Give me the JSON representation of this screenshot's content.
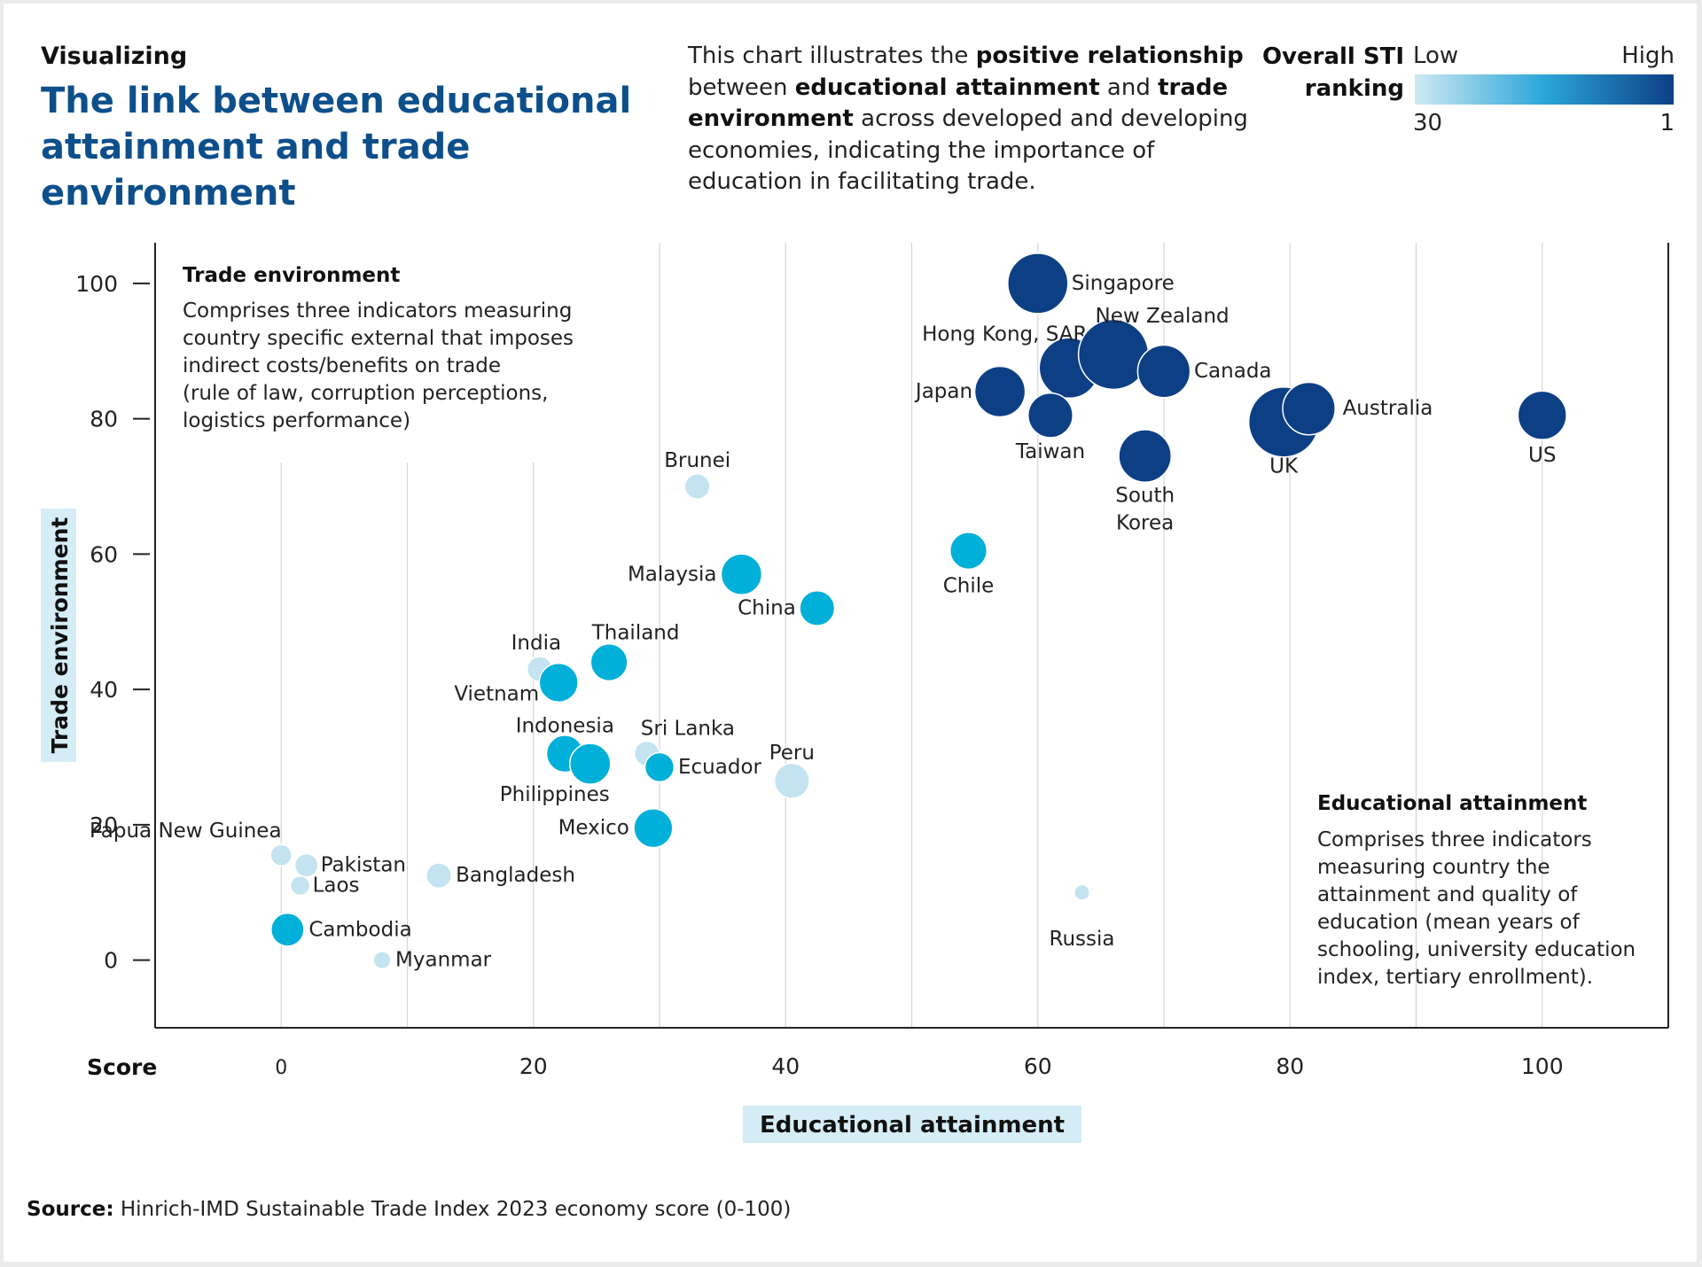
{
  "header": {
    "kicker": "Visualizing",
    "title": "The link between educational attainment and trade environment",
    "description": [
      {
        "text": "This chart illustrates the ",
        "bold": false
      },
      {
        "text": "positive relationship",
        "bold": true
      },
      {
        "text": " between ",
        "bold": false
      },
      {
        "text": "educational attainment",
        "bold": true
      },
      {
        "text": " and ",
        "bold": false
      },
      {
        "text": "trade environment",
        "bold": true
      },
      {
        "text": " across developed and developing economies, indicating the importance of education in facilitating trade.",
        "bold": false
      }
    ]
  },
  "legend": {
    "title": "Overall STI ranking",
    "low_label": "Low",
    "high_label": "High",
    "min_value": "30",
    "max_value": "1",
    "colors": [
      "#cfe9f4",
      "#2aa6d8",
      "#0d3f85"
    ]
  },
  "annotations": {
    "trade": {
      "title": "Trade environment",
      "lines": [
        "Comprises three indicators measuring",
        "country specific external that imposes",
        "indirect costs/benefits on trade",
        "(rule of law, corruption perceptions,",
        "logistics performance)"
      ]
    },
    "education": {
      "title": "Educational attainment",
      "lines": [
        "Comprises three indicators",
        "measuring country the",
        "attainment and quality of",
        "education (mean years of",
        "schooling, university education",
        "index, tertiary enrollment)."
      ]
    }
  },
  "chart_data": {
    "type": "scatter",
    "xlabel": "Educational attainment",
    "ylabel": "Trade environment",
    "x_prefix_label": "Score",
    "xlim": [
      -10,
      110
    ],
    "ylim": [
      -10,
      106
    ],
    "xticks": [
      0,
      20,
      40,
      60,
      80,
      100
    ],
    "yticks": [
      0,
      20,
      40,
      60,
      80,
      100
    ],
    "grid": "vertical",
    "legend_placement": "top-right",
    "tiers": {
      "low": "#c3e3f0",
      "mid": "#00b0d8",
      "high": "#0d3f85"
    },
    "points": [
      {
        "name": "Singapore",
        "x": 60,
        "y": 100,
        "tier": "high",
        "size": 3
      },
      {
        "name": "Hong Kong, SAR",
        "x": 62.5,
        "y": 87.5,
        "tier": "high",
        "size": 3
      },
      {
        "name": "New Zealand",
        "x": 66,
        "y": 89.5,
        "tier": "high",
        "size": 3.5
      },
      {
        "name": "Canada",
        "x": 70,
        "y": 87,
        "tier": "high",
        "size": 2.6
      },
      {
        "name": "Japan",
        "x": 57,
        "y": 84,
        "tier": "high",
        "size": 2.5
      },
      {
        "name": "Taiwan",
        "x": 61,
        "y": 80.5,
        "tier": "high",
        "size": 2.2
      },
      {
        "name": "South Korea",
        "x": 68.5,
        "y": 74.5,
        "tier": "high",
        "size": 2.6
      },
      {
        "name": "UK",
        "x": 79.5,
        "y": 79.5,
        "tier": "high",
        "size": 3.5
      },
      {
        "name": "Australia",
        "x": 81.5,
        "y": 81.5,
        "tier": "high",
        "size": 2.6
      },
      {
        "name": "US",
        "x": 100,
        "y": 80.5,
        "tier": "high",
        "size": 2.4
      },
      {
        "name": "Brunei",
        "x": 33,
        "y": 70,
        "tier": "low",
        "size": 1.2
      },
      {
        "name": "Chile",
        "x": 54.5,
        "y": 60.5,
        "tier": "mid",
        "size": 1.8
      },
      {
        "name": "Malaysia",
        "x": 36.5,
        "y": 57,
        "tier": "mid",
        "size": 2.0
      },
      {
        "name": "China",
        "x": 42.5,
        "y": 52,
        "tier": "mid",
        "size": 1.7
      },
      {
        "name": "Thailand",
        "x": 26,
        "y": 44,
        "tier": "mid",
        "size": 1.8
      },
      {
        "name": "India",
        "x": 20.5,
        "y": 43,
        "tier": "low",
        "size": 1.2
      },
      {
        "name": "Vietnam",
        "x": 22,
        "y": 41,
        "tier": "mid",
        "size": 1.9
      },
      {
        "name": "Indonesia",
        "x": 22.5,
        "y": 30.5,
        "tier": "mid",
        "size": 1.8
      },
      {
        "name": "Philippines",
        "x": 24.5,
        "y": 29,
        "tier": "mid",
        "size": 2.0
      },
      {
        "name": "Sri Lanka",
        "x": 29,
        "y": 30.5,
        "tier": "low",
        "size": 1.2
      },
      {
        "name": "Ecuador",
        "x": 30,
        "y": 28.5,
        "tier": "mid",
        "size": 1.4
      },
      {
        "name": "Peru",
        "x": 40.5,
        "y": 26.5,
        "tier": "low",
        "size": 1.7
      },
      {
        "name": "Mexico",
        "x": 29.5,
        "y": 19.5,
        "tier": "mid",
        "size": 1.9
      },
      {
        "name": "Papua New Guinea",
        "x": 0,
        "y": 15.5,
        "tier": "low",
        "size": 1.0
      },
      {
        "name": "Pakistan",
        "x": 2,
        "y": 14,
        "tier": "low",
        "size": 1.1
      },
      {
        "name": "Laos",
        "x": 1.5,
        "y": 11,
        "tier": "low",
        "size": 0.9
      },
      {
        "name": "Bangladesh",
        "x": 12.5,
        "y": 12.5,
        "tier": "low",
        "size": 1.2
      },
      {
        "name": "Cambodia",
        "x": 0.5,
        "y": 4.5,
        "tier": "mid",
        "size": 1.6
      },
      {
        "name": "Myanmar",
        "x": 8,
        "y": 0,
        "tier": "low",
        "size": 0.8
      },
      {
        "name": "Russia",
        "x": 63.5,
        "y": 10,
        "tier": "low",
        "size": 0.7
      }
    ]
  },
  "footer": {
    "label": "Source:",
    "text": " Hinrich-IMD Sustainable Trade Index 2023 economy score (0-100)"
  }
}
